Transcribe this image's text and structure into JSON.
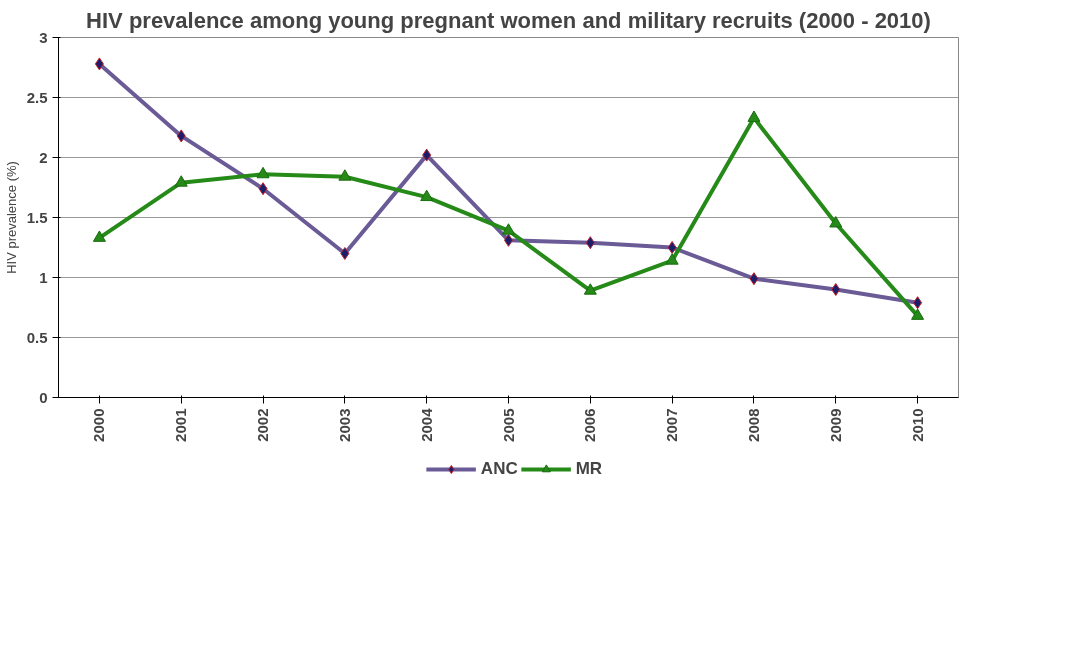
{
  "chart_data": {
    "type": "line",
    "title": "HIV prevalence among young pregnant women and military recruits (2000 - 2010)",
    "ylabel": "HIV prevalence (%)",
    "categories": [
      "2000",
      "2001",
      "2002",
      "2003",
      "2004",
      "2005",
      "2006",
      "2007",
      "2008",
      "2009",
      "2010"
    ],
    "series": [
      {
        "name": "ANC",
        "color": "#6a5a96",
        "marker": "diamond",
        "values": [
          2.78,
          2.18,
          1.74,
          1.2,
          2.02,
          1.31,
          1.29,
          1.25,
          0.99,
          0.9,
          0.79
        ]
      },
      {
        "name": "MR",
        "color": "#258a17",
        "marker": "triangle",
        "values": [
          1.33,
          1.79,
          1.86,
          1.84,
          1.67,
          1.39,
          0.89,
          1.14,
          2.33,
          1.45,
          0.68
        ]
      }
    ],
    "ylim": [
      0,
      3
    ],
    "yticks": [
      0,
      0.5,
      1,
      1.5,
      2,
      2.5,
      3
    ],
    "grid": "y",
    "legend": "bottom"
  }
}
